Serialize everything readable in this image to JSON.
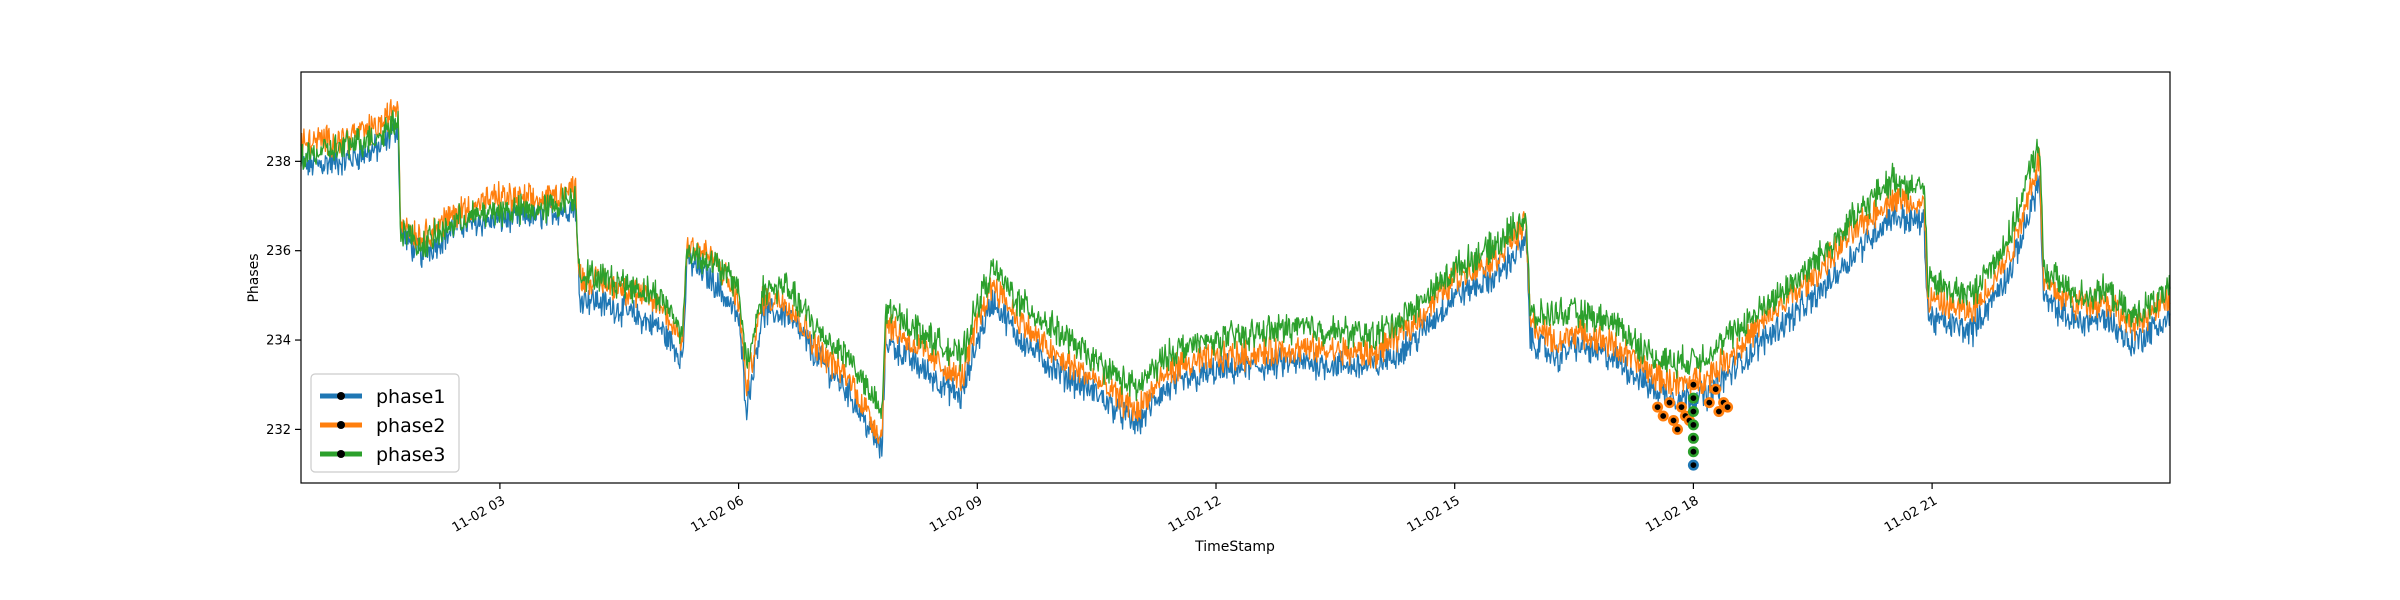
{
  "chart_data": {
    "type": "line",
    "xlabel": "TimeStamp",
    "ylabel": "Phases",
    "xlim": [
      "11-02 00:30",
      "23:59"
    ],
    "ylim": [
      230.8,
      240.0
    ],
    "x_ticks": [
      {
        "label": "11-02 03",
        "hour": 3
      },
      {
        "label": "11-02 06",
        "hour": 6
      },
      {
        "label": "11-02 09",
        "hour": 9
      },
      {
        "label": "11-02 12",
        "hour": 12
      },
      {
        "label": "11-02 15",
        "hour": 15
      },
      {
        "label": "11-02 18",
        "hour": 18
      },
      {
        "label": "11-02 21",
        "hour": 21
      }
    ],
    "y_ticks": [
      232,
      234,
      236,
      238
    ],
    "grid": false,
    "legend_position": "lower-left",
    "series": [
      {
        "name": "phase1",
        "color": "#1f77b4",
        "x_hours": [
          0.5,
          1.0,
          1.5,
          1.72,
          1.75,
          2.0,
          2.5,
          3.0,
          3.5,
          3.95,
          4.0,
          4.5,
          5.0,
          5.3,
          5.35,
          5.7,
          6.0,
          6.1,
          6.3,
          6.6,
          7.0,
          7.4,
          7.8,
          7.85,
          8.2,
          8.8,
          9.0,
          9.2,
          9.5,
          10.0,
          10.5,
          11.0,
          11.3,
          11.5,
          12.0,
          13.0,
          14.0,
          14.5,
          15.0,
          15.5,
          15.9,
          15.95,
          16.3,
          16.5,
          17.0,
          17.5,
          17.85,
          18.2,
          18.6,
          19.0,
          19.5,
          20.0,
          20.5,
          20.9,
          20.95,
          21.5,
          22.0,
          22.35,
          22.4,
          22.8,
          23.2,
          23.5,
          23.99
        ],
        "values": [
          237.9,
          238.0,
          238.3,
          238.8,
          236.4,
          235.9,
          236.6,
          236.7,
          236.8,
          237.0,
          235.0,
          234.7,
          234.3,
          233.6,
          235.8,
          235.3,
          234.5,
          232.5,
          234.6,
          234.6,
          233.6,
          232.8,
          231.5,
          234.0,
          233.5,
          232.7,
          234.0,
          234.9,
          234.1,
          233.3,
          232.8,
          232.1,
          232.8,
          233.0,
          233.3,
          233.5,
          233.4,
          234.0,
          235.0,
          235.4,
          236.2,
          234.0,
          233.6,
          233.9,
          233.6,
          232.9,
          232.7,
          232.8,
          233.5,
          234.2,
          234.9,
          235.9,
          236.8,
          236.6,
          234.5,
          234.2,
          235.6,
          237.6,
          234.9,
          234.4,
          234.5,
          233.9,
          234.5
        ]
      },
      {
        "name": "phase2",
        "color": "#ff7f0e",
        "x_hours": [
          0.5,
          1.0,
          1.5,
          1.72,
          1.75,
          2.0,
          2.5,
          3.0,
          3.5,
          3.95,
          4.0,
          4.5,
          5.0,
          5.3,
          5.35,
          5.7,
          6.0,
          6.1,
          6.3,
          6.6,
          7.0,
          7.4,
          7.8,
          7.85,
          8.2,
          8.8,
          9.0,
          9.2,
          9.5,
          10.0,
          10.5,
          11.0,
          11.3,
          11.5,
          12.0,
          13.0,
          14.0,
          14.5,
          15.0,
          15.5,
          15.9,
          15.95,
          16.3,
          16.5,
          17.0,
          17.5,
          17.85,
          18.2,
          18.6,
          19.0,
          19.5,
          20.0,
          20.5,
          20.9,
          20.95,
          21.5,
          22.0,
          22.35,
          22.4,
          22.8,
          23.2,
          23.5,
          23.99
        ],
        "values": [
          238.4,
          238.5,
          238.8,
          239.3,
          236.7,
          236.3,
          236.9,
          237.2,
          237.1,
          237.4,
          235.4,
          235.2,
          234.8,
          234.0,
          236.2,
          235.8,
          234.9,
          232.9,
          234.9,
          234.9,
          233.8,
          233.1,
          231.8,
          234.4,
          233.9,
          233.1,
          234.4,
          235.3,
          234.5,
          233.6,
          233.1,
          232.4,
          233.1,
          233.4,
          233.6,
          233.8,
          233.7,
          234.4,
          235.4,
          235.8,
          236.6,
          234.4,
          233.9,
          234.2,
          233.9,
          233.2,
          233.0,
          233.2,
          233.9,
          234.6,
          235.4,
          236.4,
          237.2,
          237.0,
          234.9,
          234.6,
          236.0,
          238.1,
          235.3,
          234.8,
          234.9,
          234.3,
          234.9
        ]
      },
      {
        "name": "phase3",
        "color": "#2ca02c",
        "x_hours": [
          0.5,
          1.0,
          1.5,
          1.72,
          1.75,
          2.0,
          2.5,
          3.0,
          3.5,
          3.95,
          4.0,
          4.5,
          5.0,
          5.3,
          5.35,
          5.7,
          6.0,
          6.1,
          6.3,
          6.6,
          7.0,
          7.4,
          7.8,
          7.85,
          8.2,
          8.8,
          9.0,
          9.2,
          9.5,
          10.0,
          10.5,
          11.0,
          11.3,
          11.5,
          12.0,
          13.0,
          14.0,
          14.5,
          15.0,
          15.5,
          15.9,
          15.95,
          16.3,
          16.5,
          17.0,
          17.5,
          17.85,
          18.2,
          18.6,
          19.0,
          19.5,
          20.0,
          20.5,
          20.9,
          20.95,
          21.5,
          22.0,
          22.35,
          22.4,
          22.8,
          23.2,
          23.5,
          23.99
        ],
        "values": [
          238.1,
          238.3,
          238.6,
          239.0,
          236.5,
          236.1,
          236.7,
          236.9,
          236.9,
          237.2,
          235.5,
          235.3,
          235.0,
          234.2,
          236.0,
          235.7,
          235.2,
          233.4,
          235.1,
          235.2,
          234.2,
          233.6,
          232.3,
          234.7,
          234.3,
          233.6,
          234.8,
          235.6,
          234.9,
          234.2,
          233.5,
          232.9,
          233.5,
          233.8,
          234.0,
          234.3,
          234.1,
          234.7,
          235.6,
          236.1,
          236.8,
          234.5,
          234.6,
          234.6,
          234.4,
          233.6,
          233.5,
          233.7,
          234.3,
          234.9,
          235.7,
          236.7,
          237.6,
          237.4,
          235.3,
          235.0,
          236.4,
          238.5,
          235.6,
          235.0,
          235.1,
          234.5,
          235.1
        ]
      }
    ],
    "markers": {
      "color": "#000000",
      "points": [
        {
          "hour": 17.55,
          "value": 232.5,
          "color": "#ff7f0e"
        },
        {
          "hour": 17.62,
          "value": 232.3,
          "color": "#ff7f0e"
        },
        {
          "hour": 17.7,
          "value": 232.6,
          "color": "#ff7f0e"
        },
        {
          "hour": 17.75,
          "value": 232.2,
          "color": "#ff7f0e"
        },
        {
          "hour": 17.8,
          "value": 232.0,
          "color": "#ff7f0e"
        },
        {
          "hour": 17.85,
          "value": 232.5,
          "color": "#ff7f0e"
        },
        {
          "hour": 17.9,
          "value": 232.3,
          "color": "#ff7f0e"
        },
        {
          "hour": 17.95,
          "value": 232.2,
          "color": "#ff7f0e"
        },
        {
          "hour": 18.0,
          "value": 233.0,
          "color": "#ff7f0e"
        },
        {
          "hour": 18.0,
          "value": 232.7,
          "color": "#2ca02c"
        },
        {
          "hour": 18.0,
          "value": 232.4,
          "color": "#2ca02c"
        },
        {
          "hour": 18.0,
          "value": 232.1,
          "color": "#2ca02c"
        },
        {
          "hour": 18.0,
          "value": 231.8,
          "color": "#2ca02c"
        },
        {
          "hour": 18.0,
          "value": 231.5,
          "color": "#2ca02c"
        },
        {
          "hour": 18.0,
          "value": 231.2,
          "color": "#1f77b4"
        },
        {
          "hour": 18.2,
          "value": 232.6,
          "color": "#ff7f0e"
        },
        {
          "hour": 18.28,
          "value": 232.9,
          "color": "#ff7f0e"
        },
        {
          "hour": 18.32,
          "value": 232.4,
          "color": "#ff7f0e"
        },
        {
          "hour": 18.38,
          "value": 232.6,
          "color": "#ff7f0e"
        },
        {
          "hour": 18.43,
          "value": 232.5,
          "color": "#ff7f0e"
        }
      ]
    }
  }
}
